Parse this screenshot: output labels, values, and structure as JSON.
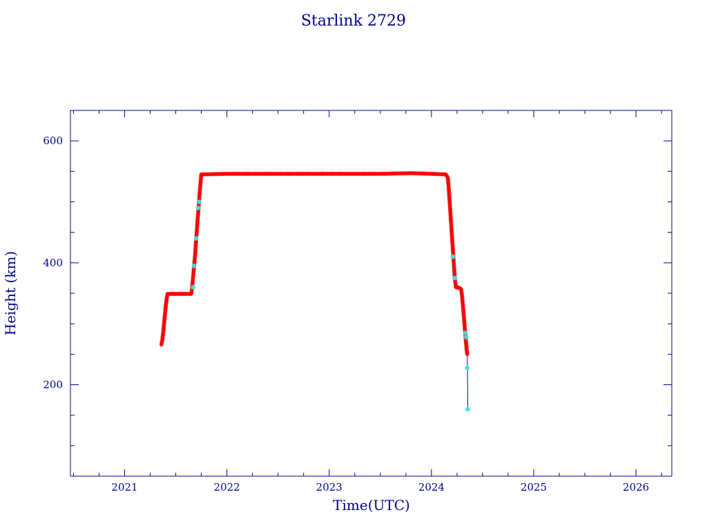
{
  "chart_data": {
    "type": "scatter",
    "title": "Starlink 2729",
    "xlabel": "Time(UTC)",
    "ylabel": "Height (km)",
    "xlim": [
      2020.47,
      2026.35
    ],
    "ylim": [
      50,
      650
    ],
    "x_ticks": [
      2021,
      2022,
      2023,
      2024,
      2025,
      2026
    ],
    "x_tick_labels": [
      "2021",
      "2022",
      "2023",
      "2024",
      "2025",
      "2026"
    ],
    "y_ticks": [
      200,
      400,
      600
    ],
    "y_tick_labels": [
      "200",
      "400",
      "600"
    ],
    "grid": false,
    "colors": {
      "axis": "#00008b",
      "series": "#ff0000",
      "highlight": "#40e0e0",
      "marker_edge": "#6b6b3a",
      "line": "#0000cd"
    },
    "series": [
      {
        "points": [
          [
            2021.36,
            266
          ],
          [
            2021.37,
            275
          ],
          [
            2021.38,
            290
          ],
          [
            2021.39,
            308
          ],
          [
            2021.4,
            325
          ],
          [
            2021.41,
            340
          ],
          [
            2021.42,
            349
          ],
          [
            2021.5,
            349
          ],
          [
            2021.58,
            349
          ],
          [
            2021.65,
            349
          ],
          [
            2021.66,
            358
          ],
          [
            2021.67,
            378
          ],
          [
            2021.68,
            396
          ],
          [
            2021.69,
            415
          ],
          [
            2021.7,
            440
          ],
          [
            2021.71,
            462
          ],
          [
            2021.72,
            484
          ],
          [
            2021.73,
            506
          ],
          [
            2021.74,
            528
          ],
          [
            2021.75,
            545
          ],
          [
            2022.0,
            546
          ],
          [
            2022.5,
            546
          ],
          [
            2023.0,
            546
          ],
          [
            2023.5,
            546
          ],
          [
            2023.8,
            547
          ],
          [
            2024.0,
            546
          ],
          [
            2024.14,
            545
          ],
          [
            2024.16,
            540
          ],
          [
            2024.17,
            520
          ],
          [
            2024.18,
            495
          ],
          [
            2024.19,
            470
          ],
          [
            2024.2,
            445
          ],
          [
            2024.21,
            420
          ],
          [
            2024.22,
            395
          ],
          [
            2024.23,
            372
          ],
          [
            2024.24,
            360
          ],
          [
            2024.27,
            359
          ],
          [
            2024.29,
            357
          ],
          [
            2024.3,
            345
          ],
          [
            2024.31,
            325
          ],
          [
            2024.32,
            305
          ],
          [
            2024.33,
            285
          ],
          [
            2024.34,
            265
          ],
          [
            2024.35,
            250
          ]
        ]
      },
      {
        "points": [
          [
            2021.67,
            360
          ],
          [
            2021.68,
            395
          ],
          [
            2021.7,
            440
          ],
          [
            2021.72,
            490
          ],
          [
            2021.73,
            500
          ],
          [
            2024.21,
            410
          ],
          [
            2024.23,
            375
          ],
          [
            2024.33,
            285
          ],
          [
            2024.34,
            278
          ],
          [
            2024.35,
            228
          ],
          [
            2024.355,
            160
          ]
        ]
      }
    ],
    "tail_line": [
      [
        2024.35,
        250
      ],
      [
        2024.352,
        228
      ],
      [
        2024.355,
        175
      ],
      [
        2024.355,
        160
      ]
    ]
  }
}
